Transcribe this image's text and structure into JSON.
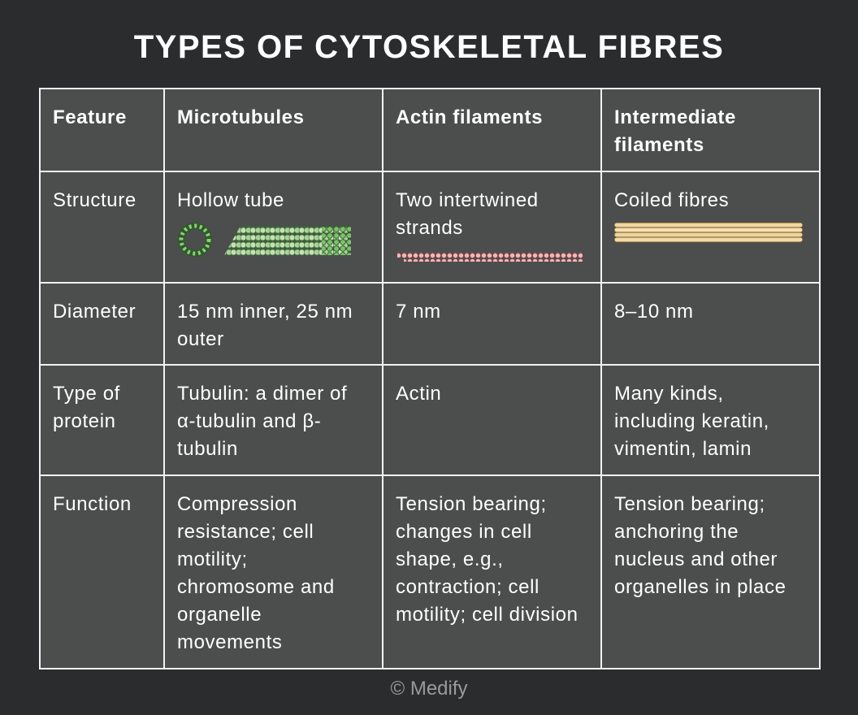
{
  "title": "TYPES OF CYTOSKELETAL FIBRES",
  "table": {
    "header": [
      "Feature",
      "Microtubules",
      "Actin filaments",
      "Intermediate filaments"
    ],
    "rows": [
      [
        "Structure",
        "Hollow tube",
        "Two intertwined strands",
        "Coiled fibres"
      ],
      [
        "Diameter",
        "15 nm inner, 25 nm outer",
        "7 nm",
        "8–10 nm"
      ],
      [
        "Type of protein",
        "Tubulin: a dimer of α-tubulin and β-tubulin",
        "Actin",
        "Many kinds, including keratin, vimentin, lamin"
      ],
      [
        "Function",
        "Compression resistance; cell motility; chromosome and organelle movements",
        "Tension bearing; changes in cell shape, e.g., contraction; cell motility; cell division",
        "Tension bearing; anchoring the nucleus and other organelles in place"
      ]
    ]
  },
  "footer": "© Medify"
}
